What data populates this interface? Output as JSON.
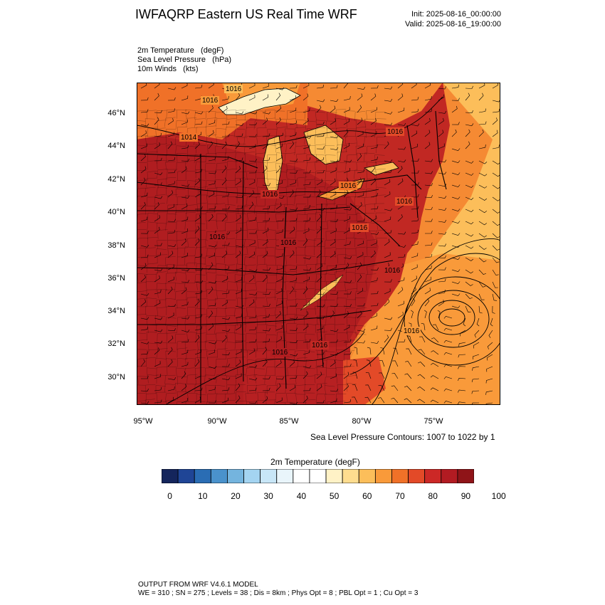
{
  "header": {
    "title": "IWFAQRP Eastern US Real Time WRF",
    "init": "Init: 2025-08-16_00:00:00",
    "valid": "Valid: 2025-08-16_19:00:00"
  },
  "fields": [
    "2m Temperature   (degF)",
    "Sea Level Pressure   (hPa)",
    "10m Winds   (kts)"
  ],
  "map": {
    "lat_labels": [
      "46°N",
      "44°N",
      "42°N",
      "40°N",
      "38°N",
      "36°N",
      "34°N",
      "32°N",
      "30°N"
    ],
    "lon_labels": [
      "95°W",
      "90°W",
      "85°W",
      "80°W",
      "75°W"
    ],
    "isobar_labels": [
      "1016",
      "1016",
      "1014",
      "1016",
      "1016",
      "1016",
      "1016",
      "1016",
      "1016",
      "1016",
      "1016",
      "1016",
      "1016",
      "1016"
    ],
    "contour_note": "Sea Level Pressure Contours: 1007 to 1022 by 1"
  },
  "colorbar": {
    "title": "2m Temperature  (degF)",
    "labels": [
      "0",
      "10",
      "20",
      "30",
      "40",
      "50",
      "60",
      "70",
      "80",
      "90",
      "100"
    ],
    "colors": [
      "#14255c",
      "#1f4596",
      "#2a6db4",
      "#4a92cc",
      "#74b4de",
      "#a4d4f1",
      "#c8e6f7",
      "#e9f5fb",
      "#ffffff",
      "#ffffff",
      "#fff2c6",
      "#fedd8f",
      "#fcbe5a",
      "#f99a3a",
      "#f07128",
      "#e34a28",
      "#cc2826",
      "#b21b22",
      "#8f1418"
    ]
  },
  "footer": {
    "line1": "OUTPUT FROM WRF V4.6.1 MODEL",
    "line2": "WE = 310 ; SN = 275 ; Levels = 38 ; Dis = 8km ; Phys Opt = 8 ; PBL Opt = 1 ; Cu Opt = 3"
  }
}
